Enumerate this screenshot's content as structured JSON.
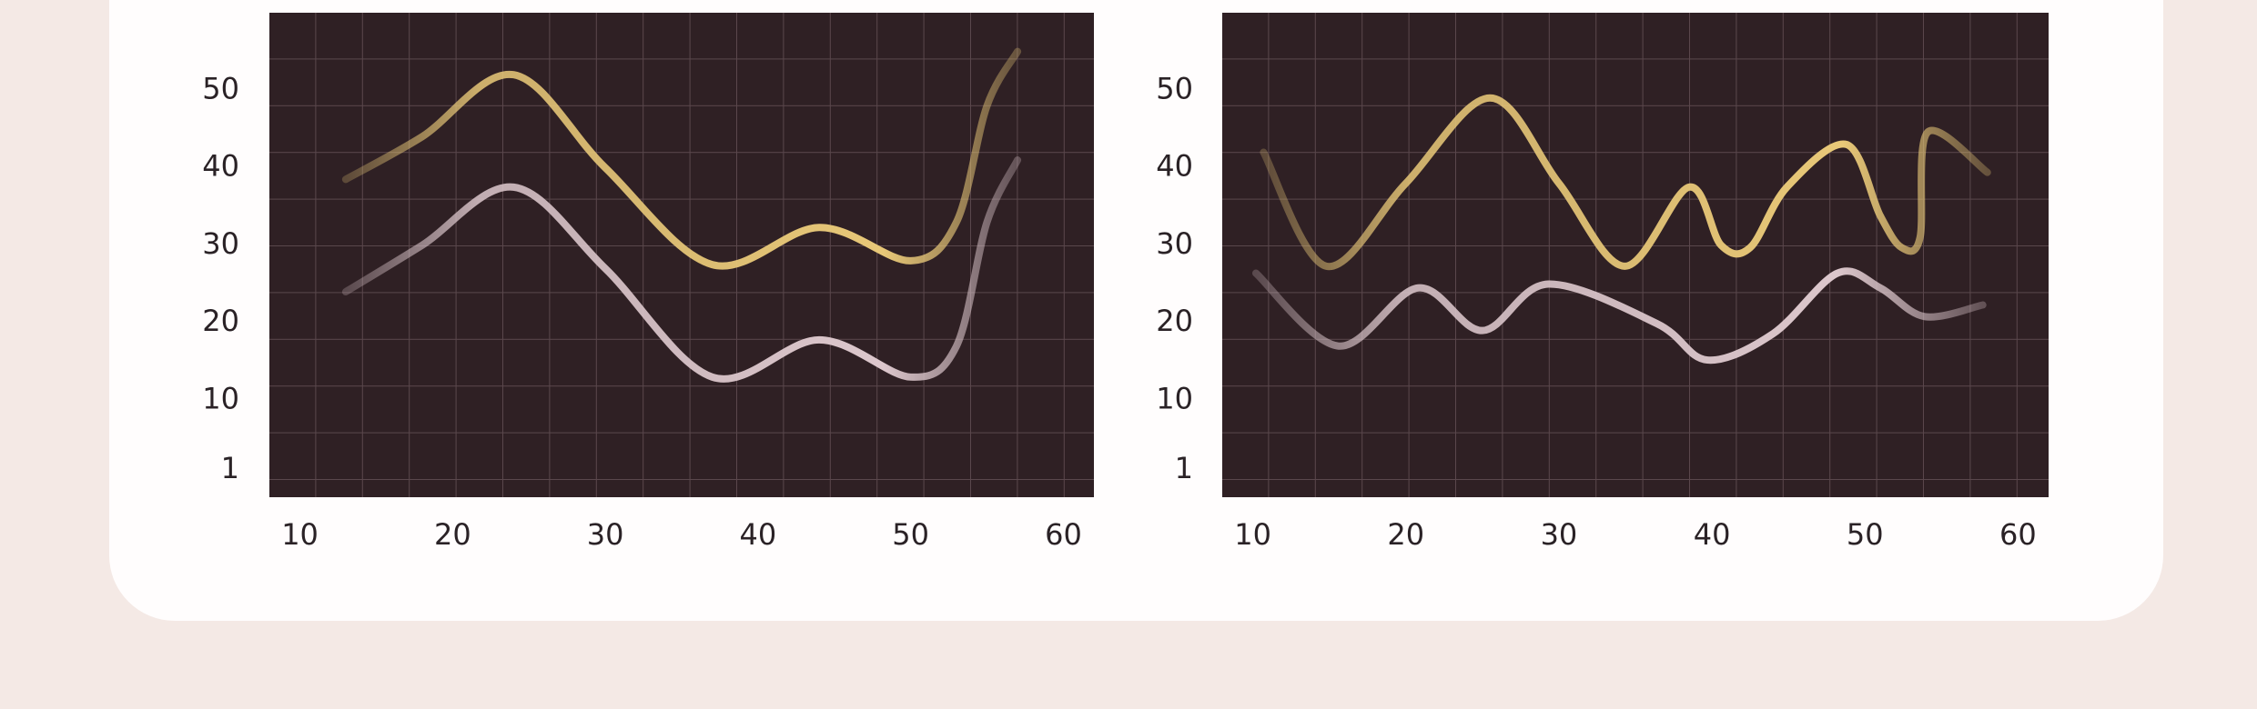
{
  "chart_data": [
    {
      "type": "line",
      "xlim": [
        8,
        62
      ],
      "ylim": [
        -2.5,
        60
      ],
      "xticks": [
        10,
        20,
        30,
        40,
        50,
        60
      ],
      "yticks": [
        1,
        10,
        20,
        30,
        40,
        50
      ],
      "series": [
        {
          "color": "#e8c878",
          "x": [
            13,
            18,
            24,
            30,
            37,
            44,
            50,
            53,
            55,
            57
          ],
          "values": [
            38.5,
            44,
            52,
            40,
            27.5,
            32.3,
            28,
            33,
            48,
            55
          ]
        },
        {
          "color": "#dcc7cc",
          "x": [
            13,
            18,
            24,
            30,
            37,
            44,
            50,
            53,
            55,
            57
          ],
          "values": [
            24,
            30,
            37.5,
            27,
            13,
            17.8,
            13,
            17,
            33,
            41
          ]
        }
      ]
    },
    {
      "type": "line",
      "xlim": [
        8,
        62
      ],
      "ylim": [
        -2.5,
        60
      ],
      "xticks": [
        10,
        20,
        30,
        40,
        50,
        60
      ],
      "yticks": [
        1,
        10,
        20,
        30,
        40,
        50
      ],
      "series": [
        {
          "color": "#e8c878",
          "x": [
            10.7,
            14.8,
            20,
            25.5,
            30,
            34.3,
            38.5,
            40.6,
            42.5,
            44.9,
            48.8,
            51,
            52.4,
            53.6,
            54.1,
            58
          ],
          "values": [
            42,
            27.3,
            38,
            49,
            38,
            27.3,
            37.5,
            30,
            29.7,
            37.5,
            43,
            33.8,
            29.7,
            31,
            44.6,
            39.4
          ]
        },
        {
          "color": "#dcc7cc",
          "x": [
            10.2,
            15.6,
            20.8,
            25,
            29.3,
            36.4,
            39.7,
            44,
            48.2,
            51,
            53.9,
            57.7
          ],
          "values": [
            26.4,
            17,
            24.5,
            19,
            25,
            19.9,
            15.2,
            18.6,
            26.4,
            24.5,
            20.8,
            22.3
          ]
        }
      ]
    }
  ]
}
